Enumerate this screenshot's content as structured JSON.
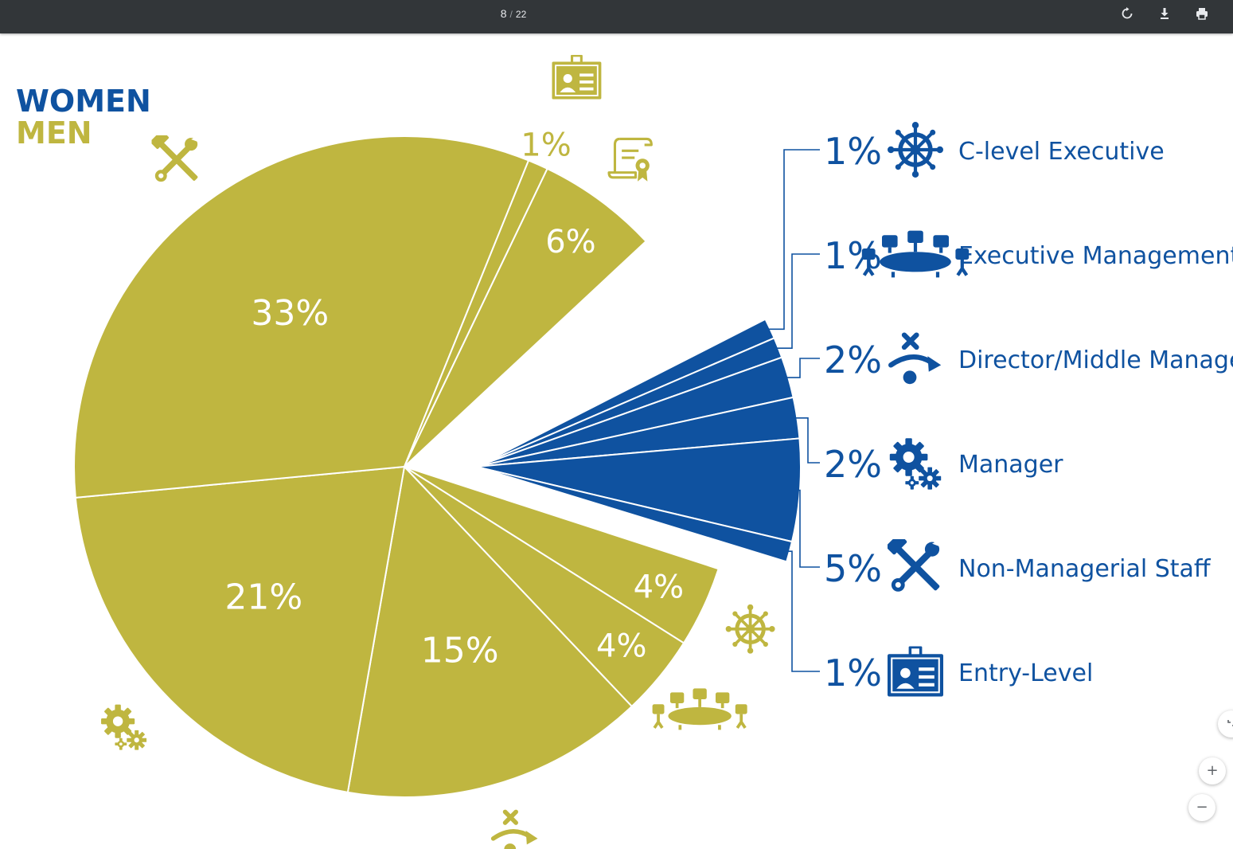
{
  "toolbar": {
    "page_current": "8",
    "page_separator": "/",
    "page_total": "22",
    "icons": [
      "rotate-icon",
      "download-icon",
      "print-icon"
    ]
  },
  "zoom": {
    "fit_label": "",
    "zoom_in_label": "+",
    "zoom_out_label": "−"
  },
  "colors": {
    "women": "#0f52a0",
    "men": "#bfb640",
    "toolbar": "#323639"
  },
  "chart_data": {
    "type": "pie",
    "legend": [
      "WOMEN",
      "MEN"
    ],
    "series": [
      {
        "name": "WOMEN",
        "slices": [
          {
            "label": "C-level Executive",
            "value": 1,
            "display": "1%",
            "icon": "ships-wheel-icon"
          },
          {
            "label": "Executive Management",
            "value": 1,
            "display": "1%",
            "icon": "boardroom-table-icon"
          },
          {
            "label": "Director/Middle Manager",
            "value": 2,
            "display": "2%",
            "icon": "strategy-play-icon"
          },
          {
            "label": "Manager",
            "value": 2,
            "display": "2%",
            "icon": "gears-icon"
          },
          {
            "label": "Non-Managerial Staff",
            "value": 5,
            "display": "5%",
            "icon": "hammer-wrench-icon"
          },
          {
            "label": "Entry-Level",
            "value": 1,
            "display": "1%",
            "icon": "id-badge-icon"
          }
        ]
      },
      {
        "name": "MEN",
        "slices": [
          {
            "value": 4,
            "display": "4%",
            "icon": "ships-wheel-icon"
          },
          {
            "value": 4,
            "display": "4%",
            "icon": "boardroom-table-icon"
          },
          {
            "value": 15,
            "display": "15%",
            "icon": "strategy-play-icon"
          },
          {
            "value": 21,
            "display": "21%",
            "icon": "gears-icon"
          },
          {
            "value": 33,
            "display": "33%",
            "icon": "hammer-wrench-icon"
          },
          {
            "value": 1,
            "display": "1%",
            "icon": "id-badge-icon"
          },
          {
            "value": 6,
            "display": "6%",
            "icon": "certificate-scroll-icon"
          }
        ]
      }
    ]
  }
}
